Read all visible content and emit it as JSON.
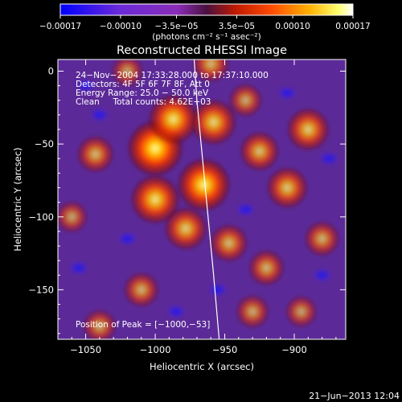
{
  "chart_data": {
    "type": "heatmap",
    "title": "Reconstructed RHESSI Image",
    "xlabel": "Heliocentric X (arcsec)",
    "ylabel": "Heliocentric Y (arcsec)",
    "xlim": [
      -1070,
      -863
    ],
    "ylim": [
      -184,
      8
    ],
    "x_ticks": [
      {
        "value": -1050,
        "label": "−1050"
      },
      {
        "value": -1000,
        "label": "−1000"
      },
      {
        "value": -950,
        "label": "−950"
      },
      {
        "value": -900,
        "label": "−900"
      }
    ],
    "y_ticks": [
      {
        "value": 0,
        "label": "0"
      },
      {
        "value": -50,
        "label": "−50"
      },
      {
        "value": -100,
        "label": "−100"
      },
      {
        "value": -150,
        "label": "−150"
      }
    ],
    "colorbar": {
      "range": [
        -0.00017,
        0.00017
      ],
      "ticks": [
        {
          "value": -0.00017,
          "label": "−0.00017"
        },
        {
          "value": -0.0001,
          "label": "−0.00010"
        },
        {
          "value": -3.5e-05,
          "label": "−3.5e−05"
        },
        {
          "value": 3.5e-05,
          "label": "3.5e−05"
        },
        {
          "value": 0.0001,
          "label": "0.00010"
        },
        {
          "value": 0.00017,
          "label": "0.00017"
        }
      ],
      "unit_label": "(photons cm⁻² s⁻¹ asec⁻²)",
      "colors": [
        "#0000ff",
        "#6a2ad8",
        "#8a2cb8",
        "#b0200a",
        "#ff3b00",
        "#ff9a00",
        "#ffff60",
        "#ffffff"
      ]
    },
    "peak_sources": [
      {
        "x": -1000,
        "y": -53,
        "intensity": 1.0
      },
      {
        "x": -965,
        "y": -78,
        "intensity": 0.92
      },
      {
        "x": -987,
        "y": -33,
        "intensity": 0.82
      },
      {
        "x": -1000,
        "y": -88,
        "intensity": 0.8
      },
      {
        "x": -958,
        "y": -35,
        "intensity": 0.7
      },
      {
        "x": -978,
        "y": -108,
        "intensity": 0.62
      },
      {
        "x": -890,
        "y": -40,
        "intensity": 0.62
      },
      {
        "x": -905,
        "y": -80,
        "intensity": 0.58
      },
      {
        "x": -925,
        "y": -55,
        "intensity": 0.52
      },
      {
        "x": -947,
        "y": -118,
        "intensity": 0.48
      },
      {
        "x": -1043,
        "y": -57,
        "intensity": 0.45
      },
      {
        "x": -960,
        "y": 5,
        "intensity": 0.45
      },
      {
        "x": -920,
        "y": -135,
        "intensity": 0.42
      },
      {
        "x": -1010,
        "y": -150,
        "intensity": 0.4
      },
      {
        "x": -880,
        "y": -115,
        "intensity": 0.4
      },
      {
        "x": -1040,
        "y": -175,
        "intensity": 0.35
      },
      {
        "x": -930,
        "y": -165,
        "intensity": 0.35
      },
      {
        "x": -895,
        "y": -165,
        "intensity": 0.3
      },
      {
        "x": -935,
        "y": -20,
        "intensity": 0.35
      },
      {
        "x": -1060,
        "y": -100,
        "intensity": 0.3
      },
      {
        "x": -1020,
        "y": 0,
        "intensity": 0.3
      }
    ],
    "limb_curve": [
      {
        "x": -972,
        "y": 8
      },
      {
        "x": -970,
        "y": -20
      },
      {
        "x": -966,
        "y": -60
      },
      {
        "x": -962,
        "y": -100
      },
      {
        "x": -958,
        "y": -140
      },
      {
        "x": -954,
        "y": -184
      }
    ],
    "info_lines": [
      "24−Nov−2004 17:33:28.000 to 17:37:10.000",
      "Detectors: 4F 5F 6F 7F 8F, Att 0",
      "Energy Range: 25.0 − 50.0 keV",
      "Clean     Total counts: 4.62E+03"
    ],
    "peak_label": "Position of Peak = [−1000,−53]",
    "date_stamp": "21−Jun−2013 12:04"
  }
}
